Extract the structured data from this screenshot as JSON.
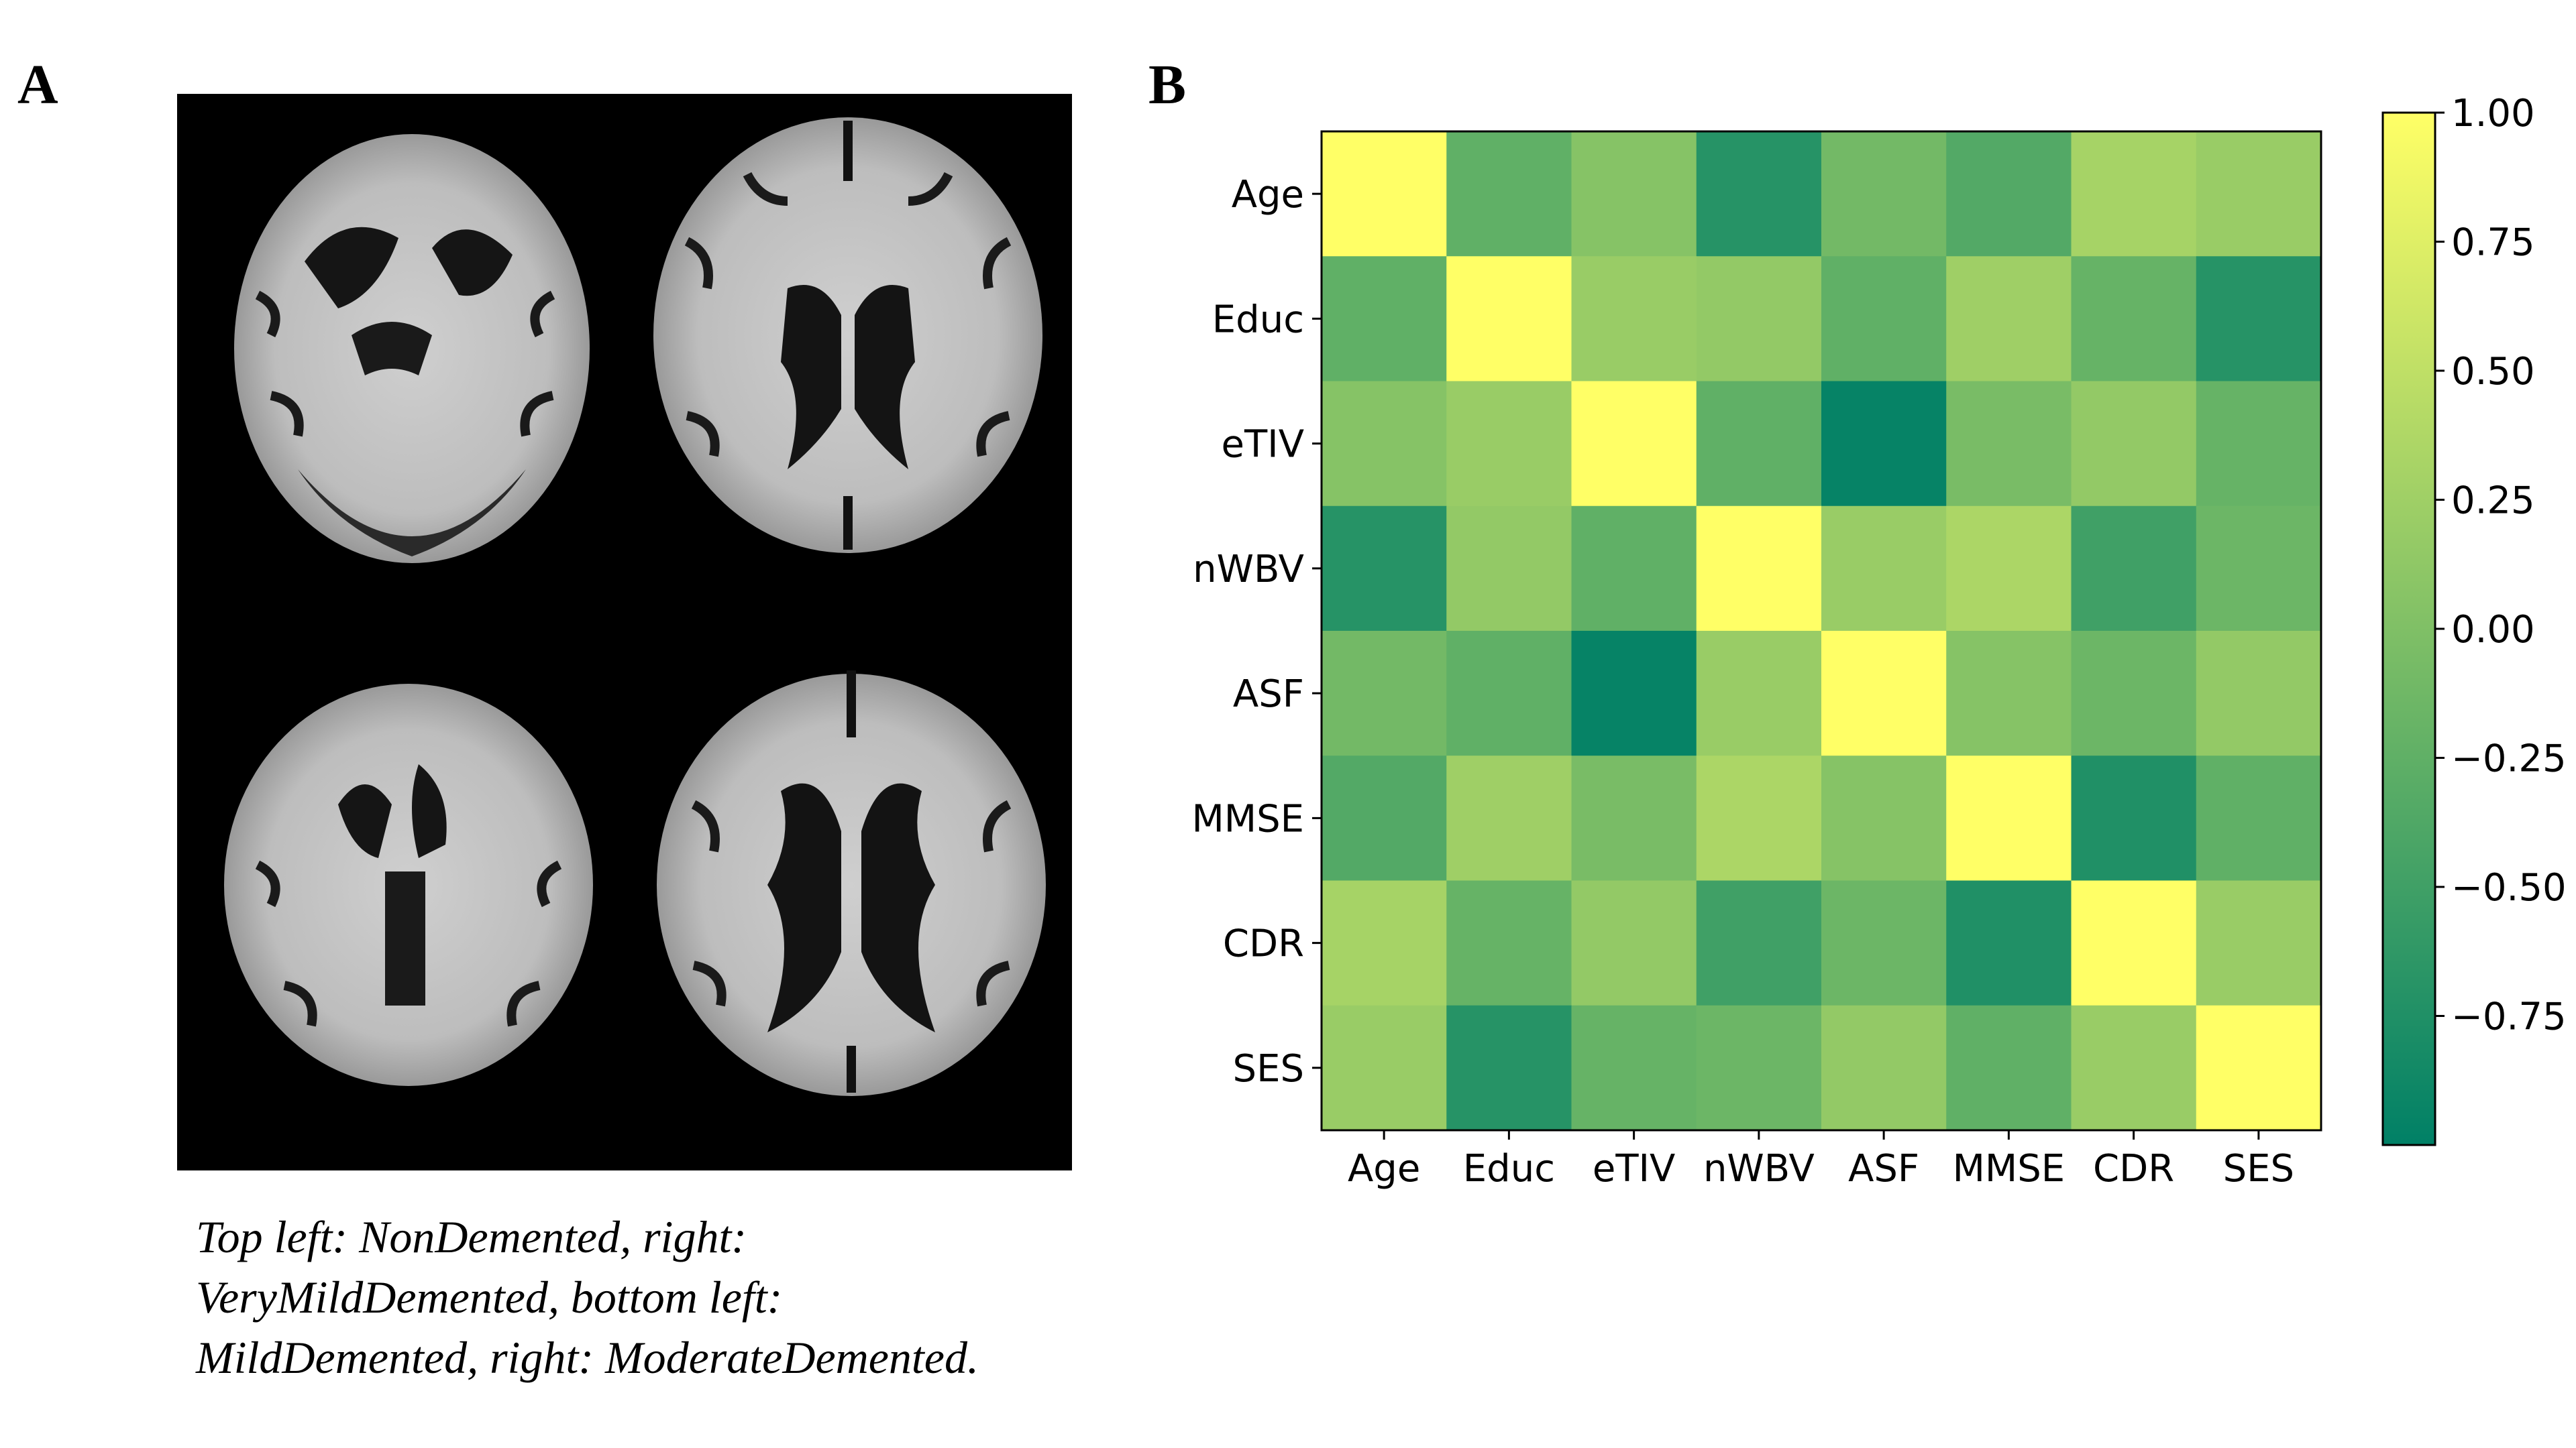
{
  "panel_a": {
    "label": "A",
    "caption_lines": [
      "Top left: NonDemented, right:",
      "VeryMildDemented, bottom left:",
      "MildDemented, right: ModerateDemented."
    ]
  },
  "panel_b": {
    "label": "B"
  },
  "chart_data": {
    "type": "heatmap",
    "title": "",
    "xlabel": "",
    "ylabel": "",
    "categories": [
      "Age",
      "Educ",
      "eTIV",
      "nWBV",
      "ASF",
      "MMSE",
      "CDR",
      "SES"
    ],
    "values": [
      [
        1.0,
        -0.25,
        0.05,
        -0.7,
        -0.1,
        -0.35,
        0.3,
        0.2
      ],
      [
        -0.25,
        1.0,
        0.2,
        0.15,
        -0.25,
        0.25,
        -0.2,
        -0.7
      ],
      [
        0.05,
        0.2,
        1.0,
        -0.25,
        -0.95,
        -0.05,
        0.15,
        -0.2
      ],
      [
        -0.7,
        0.15,
        -0.25,
        1.0,
        0.2,
        0.35,
        -0.5,
        -0.15
      ],
      [
        -0.1,
        -0.25,
        -0.95,
        0.2,
        1.0,
        0.05,
        -0.15,
        0.15
      ],
      [
        -0.35,
        0.25,
        -0.05,
        0.35,
        0.05,
        1.0,
        -0.75,
        -0.25
      ],
      [
        0.3,
        -0.2,
        0.15,
        -0.5,
        -0.15,
        -0.75,
        1.0,
        0.2
      ],
      [
        0.2,
        -0.7,
        -0.2,
        -0.15,
        0.15,
        -0.25,
        0.2,
        1.0
      ]
    ],
    "colormap": "summer",
    "colormap_stops": [
      "#008066",
      "#ffff66"
    ],
    "colorbar": {
      "range": [
        -1.0,
        1.0
      ],
      "ticks": [
        1.0,
        0.75,
        0.5,
        0.25,
        0.0,
        -0.25,
        -0.5,
        -0.75
      ],
      "tick_labels": [
        "1.00",
        "0.75",
        "0.50",
        "0.25",
        "0.00",
        "−0.25",
        "−0.50",
        "−0.75"
      ],
      "position": "right"
    },
    "grid": false
  }
}
